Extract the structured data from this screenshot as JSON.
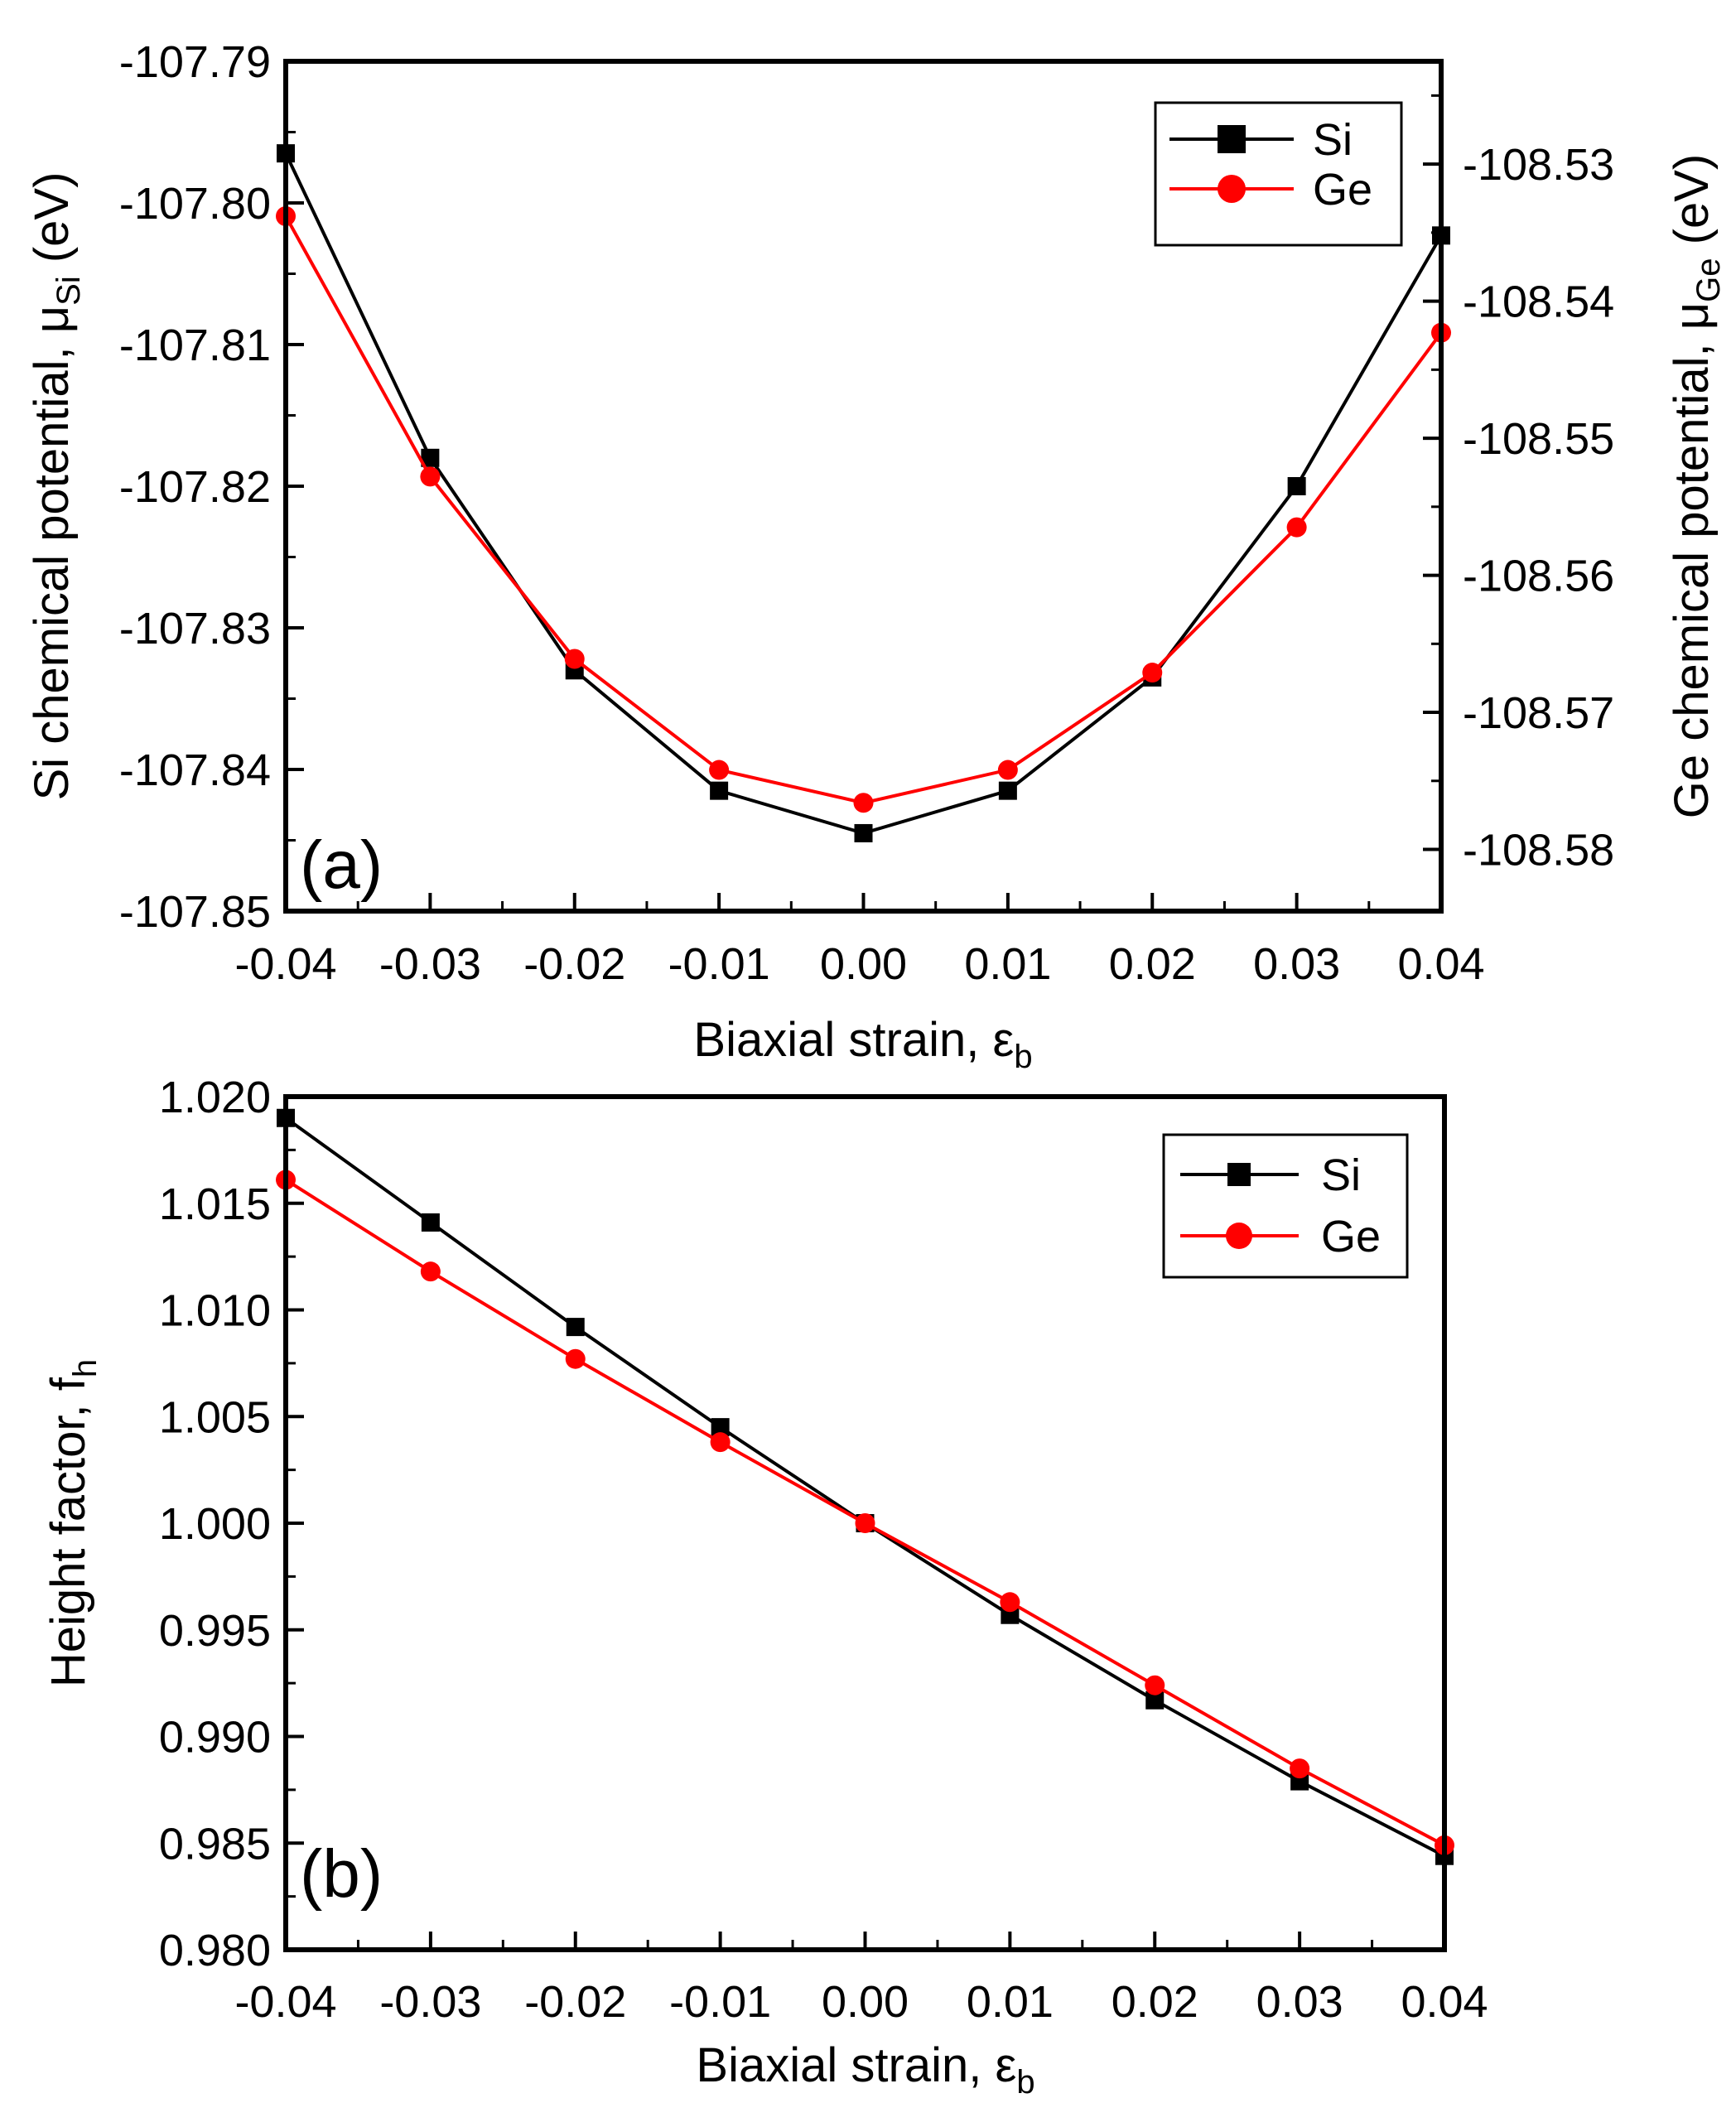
{
  "figure": {
    "panel_a": {
      "panel_label": "(a)",
      "xlabel_main": "Biaxial strain, ε",
      "xlabel_sub": "b",
      "ylabel_left_main": "Si chemical potential, μ",
      "ylabel_left_sub": "Si",
      "ylabel_left_suffix": " (eV)",
      "ylabel_right_main": "Ge chemical potential, μ",
      "ylabel_right_sub": "Ge",
      "ylabel_right_suffix": " (eV)"
    },
    "panel_b": {
      "panel_label": "(b)",
      "xlabel_main": "Biaxial strain, ε",
      "xlabel_sub": "b",
      "ylabel_main": "Height factor, f",
      "ylabel_sub": "h"
    },
    "legend": {
      "si": "Si",
      "ge": "Ge"
    },
    "colors": {
      "si": "#000000",
      "ge": "#ff0000"
    }
  },
  "chart_data": [
    {
      "type": "line",
      "id": "panel_a",
      "title": "",
      "x": [
        -0.04,
        -0.03,
        -0.02,
        -0.01,
        0.0,
        0.01,
        0.02,
        0.03,
        0.04
      ],
      "x_tick_labels": [
        "-0.04",
        "-0.03",
        "-0.02",
        "-0.01",
        "0.00",
        "0.01",
        "0.02",
        "0.03",
        "0.04"
      ],
      "xlim": [
        -0.04,
        0.04
      ],
      "xlabel": "Biaxial strain, εb",
      "ylabel": "Si chemical potential, μSi (eV)",
      "ylim": [
        -107.85,
        -107.79
      ],
      "y_ticks": [
        -107.85,
        -107.84,
        -107.83,
        -107.82,
        -107.81,
        -107.8,
        -107.79
      ],
      "y_tick_labels": [
        "-107.85",
        "-107.84",
        "-107.83",
        "-107.82",
        "-107.81",
        "-107.80",
        "-107.79"
      ],
      "ylabel_right": "Ge chemical potential, μGe (eV)",
      "ylim_right": [
        -108.5845,
        -108.5225
      ],
      "y_ticks_right": [
        -108.58,
        -108.57,
        -108.56,
        -108.55,
        -108.54,
        -108.53
      ],
      "y_tick_labels_right": [
        "-108.58",
        "-108.57",
        "-108.56",
        "-108.55",
        "-108.54",
        "-108.53"
      ],
      "legend_position": "top-right",
      "panel_label": "(a)",
      "series": [
        {
          "name": "Si",
          "axis": "left",
          "marker": "square",
          "color": "#000000",
          "values": [
            -107.7965,
            -107.818,
            -107.833,
            -107.8415,
            -107.8445,
            -107.8415,
            -107.8335,
            -107.82,
            -107.8023
          ]
        },
        {
          "name": "Ge",
          "axis": "right",
          "marker": "circle",
          "color": "#ff0000",
          "values": [
            -108.5338,
            -108.5528,
            -108.5661,
            -108.5742,
            -108.5766,
            -108.5742,
            -108.5671,
            -108.5565,
            -108.5423
          ]
        }
      ]
    },
    {
      "type": "line",
      "id": "panel_b",
      "title": "",
      "x": [
        -0.04,
        -0.03,
        -0.02,
        -0.01,
        0.0,
        0.01,
        0.02,
        0.03,
        0.04
      ],
      "x_tick_labels": [
        "-0.04",
        "-0.03",
        "-0.02",
        "-0.01",
        "0.00",
        "0.01",
        "0.02",
        "0.03",
        "0.04"
      ],
      "xlim": [
        -0.04,
        0.04
      ],
      "xlabel": "Biaxial strain, εb",
      "ylabel": "Height factor, fh",
      "ylim": [
        0.98,
        1.02
      ],
      "y_ticks": [
        0.98,
        0.985,
        0.99,
        0.995,
        1.0,
        1.005,
        1.01,
        1.015,
        1.02
      ],
      "y_tick_labels": [
        "0.980",
        "0.985",
        "0.990",
        "0.995",
        "1.000",
        "1.005",
        "1.010",
        "1.015",
        "1.020"
      ],
      "legend_position": "top-right",
      "panel_label": "(b)",
      "series": [
        {
          "name": "Si",
          "marker": "square",
          "color": "#000000",
          "values": [
            1.019,
            1.0141,
            1.0092,
            1.0045,
            1.0,
            0.9957,
            0.9917,
            0.9879,
            0.9844
          ]
        },
        {
          "name": "Ge",
          "marker": "circle",
          "color": "#ff0000",
          "values": [
            1.0161,
            1.0118,
            1.0077,
            1.0038,
            1.0,
            0.9963,
            0.9924,
            0.9885,
            0.9849
          ]
        }
      ]
    }
  ]
}
